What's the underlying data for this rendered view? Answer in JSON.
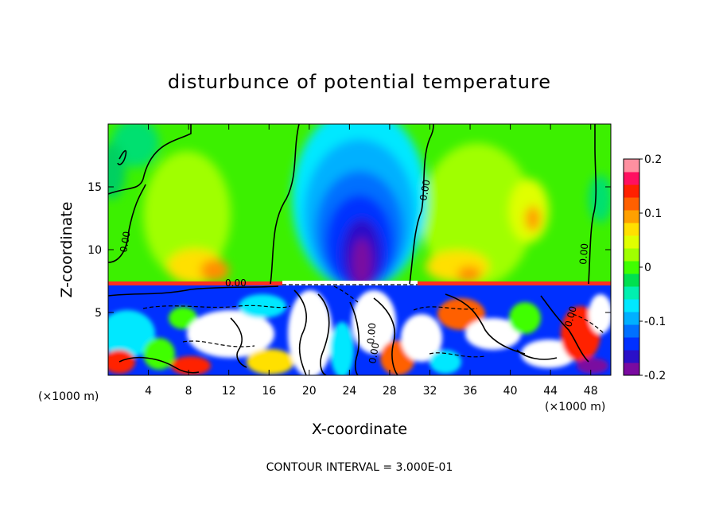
{
  "chart_data": {
    "type": "heatmap",
    "title": "disturbunce of potential temperature",
    "xlabel": "X-coordinate",
    "ylabel": "Z-coordinate",
    "x_unit": "(×1000 m)",
    "z_unit": "(×1000 m)",
    "xlim": [
      0,
      50
    ],
    "ylim": [
      0,
      20
    ],
    "x_ticks": [
      "4",
      "8",
      "12",
      "16",
      "20",
      "24",
      "28",
      "32",
      "36",
      "40",
      "44",
      "48"
    ],
    "y_ticks": [
      "5",
      "10",
      "15"
    ],
    "colorbar": {
      "min": -0.2,
      "max": 0.2,
      "ticks": [
        "0.2",
        "0.1",
        "0",
        "-0.1",
        "-0.2"
      ],
      "colors": [
        "#7a0aa0",
        "#2a10c8",
        "#0030ff",
        "#0070ff",
        "#00b0ff",
        "#00e8ff",
        "#00f0b0",
        "#00e050",
        "#40ff00",
        "#a0ff00",
        "#e0ff00",
        "#ffe000",
        "#ffa000",
        "#ff6000",
        "#ff2000",
        "#ff1060",
        "#ff90a0"
      ]
    },
    "contour_labels": [
      "0.00",
      "0.00",
      "0.00",
      "0.00",
      "0.00",
      "0.00",
      "0.00"
    ],
    "footer": "CONTOUR INTERVAL = 3.000E-01"
  }
}
